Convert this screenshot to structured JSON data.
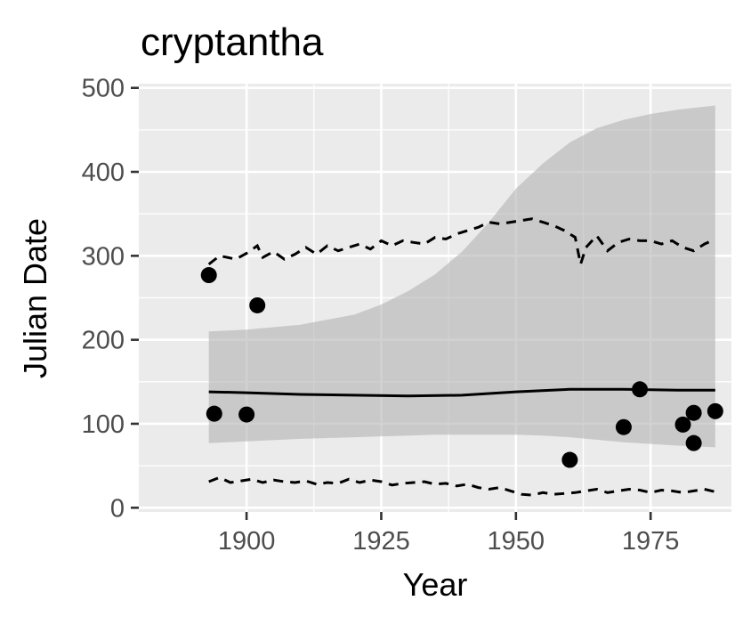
{
  "chart_data": {
    "type": "scatter",
    "title": "cryptantha",
    "xlabel": "Year",
    "ylabel": "Julian Date",
    "xlim": [
      1880,
      1990
    ],
    "ylim": [
      -5,
      505
    ],
    "x_ticks": [
      1900,
      1925,
      1950,
      1975
    ],
    "y_ticks": [
      0,
      100,
      200,
      300,
      400,
      500
    ],
    "x_tick_labels": [
      "1900",
      "1925",
      "1950",
      "1975"
    ],
    "y_tick_labels": [
      "0",
      "100",
      "200",
      "300",
      "400",
      "500"
    ],
    "grid": true,
    "legend": "none",
    "points": [
      {
        "x": 1893,
        "y": 277
      },
      {
        "x": 1894,
        "y": 112
      },
      {
        "x": 1900,
        "y": 111
      },
      {
        "x": 1902,
        "y": 241
      },
      {
        "x": 1960,
        "y": 57
      },
      {
        "x": 1970,
        "y": 96
      },
      {
        "x": 1973,
        "y": 141
      },
      {
        "x": 1981,
        "y": 99
      },
      {
        "x": 1983,
        "y": 113
      },
      {
        "x": 1983,
        "y": 77
      },
      {
        "x": 1987,
        "y": 115
      }
    ],
    "fit_line": {
      "x": [
        1893,
        1900,
        1910,
        1920,
        1930,
        1940,
        1950,
        1960,
        1970,
        1980,
        1987
      ],
      "y": [
        138,
        137,
        135,
        134,
        133,
        134,
        138,
        141,
        141,
        140,
        140
      ]
    },
    "confidence_band": {
      "x": [
        1893,
        1900,
        1910,
        1920,
        1925,
        1930,
        1935,
        1940,
        1945,
        1950,
        1955,
        1960,
        1965,
        1970,
        1975,
        1980,
        1987
      ],
      "upper": [
        210,
        212,
        218,
        230,
        242,
        258,
        278,
        305,
        340,
        380,
        410,
        435,
        452,
        462,
        469,
        474,
        479
      ],
      "lower": [
        77,
        79,
        82,
        84,
        85,
        86,
        87,
        87,
        87,
        87,
        86,
        84,
        81,
        78,
        76,
        74,
        72
      ]
    },
    "upper_dashed": {
      "x": [
        1893,
        1895,
        1898,
        1900,
        1902,
        1903,
        1905,
        1907,
        1909,
        1911,
        1913,
        1915,
        1917,
        1919,
        1921,
        1923,
        1925,
        1927,
        1929,
        1931,
        1933,
        1935,
        1937,
        1939,
        1941,
        1943,
        1945,
        1947,
        1949,
        1951,
        1953,
        1955,
        1957,
        1959,
        1961,
        1962,
        1963,
        1965,
        1967,
        1969,
        1971,
        1973,
        1975,
        1977,
        1979,
        1981,
        1983,
        1985,
        1987
      ],
      "y": [
        290,
        300,
        296,
        303,
        312,
        298,
        305,
        296,
        302,
        310,
        302,
        312,
        306,
        310,
        314,
        308,
        318,
        312,
        318,
        316,
        314,
        322,
        320,
        326,
        330,
        334,
        340,
        338,
        340,
        342,
        344,
        340,
        336,
        330,
        322,
        290,
        310,
        324,
        306,
        316,
        320,
        318,
        318,
        314,
        318,
        310,
        306,
        314,
        320
      ]
    },
    "lower_dashed": {
      "x": [
        1893,
        1895,
        1897,
        1899,
        1901,
        1903,
        1905,
        1907,
        1909,
        1911,
        1913,
        1915,
        1917,
        1919,
        1921,
        1923,
        1925,
        1927,
        1929,
        1931,
        1933,
        1935,
        1937,
        1939,
        1941,
        1943,
        1945,
        1947,
        1949,
        1951,
        1953,
        1955,
        1957,
        1959,
        1961,
        1963,
        1965,
        1967,
        1969,
        1971,
        1973,
        1975,
        1977,
        1979,
        1981,
        1983,
        1985,
        1987
      ],
      "y": [
        31,
        36,
        30,
        32,
        34,
        30,
        33,
        31,
        30,
        32,
        28,
        30,
        29,
        34,
        30,
        33,
        31,
        27,
        29,
        30,
        31,
        28,
        29,
        26,
        28,
        24,
        22,
        24,
        20,
        16,
        15,
        18,
        16,
        17,
        18,
        20,
        22,
        18,
        20,
        22,
        21,
        18,
        21,
        20,
        18,
        20,
        22,
        19
      ]
    }
  }
}
